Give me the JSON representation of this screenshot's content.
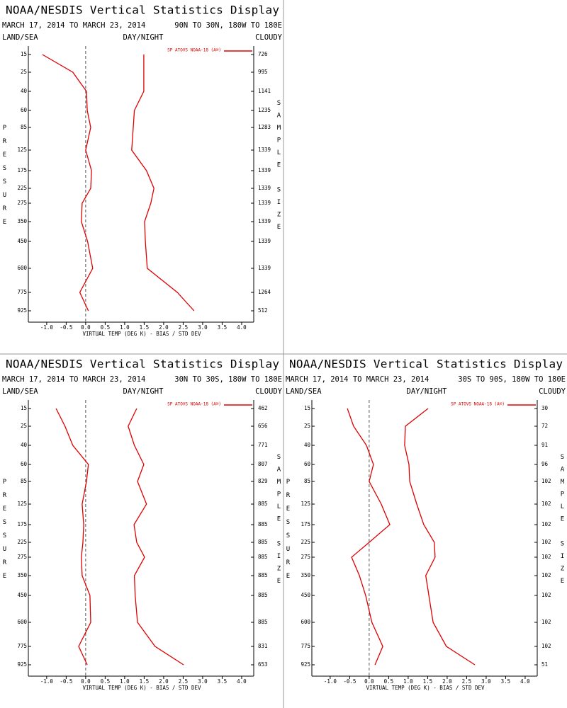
{
  "chart_data": [
    {
      "type": "line",
      "title": "NOAA/NESDIS Vertical Statistics Display",
      "subtitle": "MARCH 17, 2014 TO MARCH 23, 2014",
      "region": "90N TO 30N, 180W TO 180E",
      "land_sea": "LAND/SEA",
      "day_night": "DAY/NIGHT",
      "cloudy": "CLOUDY",
      "y_label": "PRESSURE",
      "y2_label": "SAMPLE SIZE",
      "x_label": "VIRTUAL TEMP (DEG K) - BIAS / STD DEV",
      "categories": [
        15,
        25,
        40,
        60,
        85,
        125,
        175,
        225,
        275,
        350,
        450,
        600,
        775,
        925
      ],
      "series": [
        {
          "name": "SP ATOVS NOAA-18 (A®)",
          "color": "#dd0000",
          "bias": [
            -1.11,
            -0.33,
            0.02,
            0.04,
            0.13,
            0.0,
            0.15,
            0.13,
            -0.09,
            -0.11,
            0.05,
            0.18,
            -0.15,
            0.07
          ],
          "std_dev": [
            1.49,
            1.49,
            1.49,
            1.25,
            1.22,
            1.18,
            1.56,
            1.75,
            1.67,
            1.51,
            1.53,
            1.58,
            2.35,
            2.78
          ]
        }
      ],
      "sample_size": [
        726,
        995,
        1141,
        1235,
        1283,
        1339,
        1339,
        1339,
        1339,
        1339,
        1339,
        1339,
        1264,
        512
      ],
      "xlim": [
        -1.47,
        4.31
      ],
      "xticks": [
        {
          "value": -1,
          "label": "-1.0"
        },
        -0.5,
        {
          "value": 0,
          "label": "0.0"
        },
        0.5,
        {
          "value": 1,
          "label": "1.0"
        },
        1.5,
        {
          "value": 2,
          "label": "2.0"
        },
        2.5,
        {
          "value": 3,
          "label": "3.0"
        },
        3.5,
        {
          "value": 4,
          "label": "4.0"
        }
      ]
    },
    {
      "type": "line",
      "title": "NOAA/NESDIS Vertical Statistics Display",
      "subtitle": "MARCH 17, 2014 TO MARCH 23, 2014",
      "region": "30N TO 30S, 180W TO 180E",
      "land_sea": "LAND/SEA",
      "day_night": "DAY/NIGHT",
      "cloudy": "CLOUDY",
      "y_label": "PRESSURE",
      "y2_label": "SAMPLE SIZE",
      "x_label": "VIRTUAL TEMP (DEG K) - BIAS / STD DEV",
      "categories": [
        15,
        25,
        40,
        60,
        85,
        125,
        175,
        225,
        275,
        350,
        450,
        600,
        775,
        925
      ],
      "series": [
        {
          "name": "SP ATOVS NOAA-18 (A®)",
          "color": "#dd0000",
          "bias": [
            -0.76,
            -0.53,
            -0.33,
            0.07,
            0.02,
            -0.09,
            -0.05,
            -0.07,
            -0.11,
            -0.09,
            0.11,
            0.13,
            -0.18,
            0.04
          ],
          "std_dev": [
            1.31,
            1.09,
            1.25,
            1.49,
            1.33,
            1.56,
            1.24,
            1.31,
            1.51,
            1.25,
            1.27,
            1.33,
            1.78,
            2.51
          ]
        }
      ],
      "sample_size": [
        462,
        656,
        771,
        807,
        829,
        885,
        885,
        885,
        885,
        885,
        885,
        885,
        831,
        653
      ],
      "xlim": [
        -1.47,
        4.31
      ],
      "xticks": [
        {
          "value": -1,
          "label": "-1.0"
        },
        -0.5,
        {
          "value": 0,
          "label": "0.0"
        },
        0.5,
        {
          "value": 1,
          "label": "1.0"
        },
        1.5,
        {
          "value": 2,
          "label": "2.0"
        },
        2.5,
        {
          "value": 3,
          "label": "3.0"
        },
        3.5,
        {
          "value": 4,
          "label": "4.0"
        }
      ]
    },
    {
      "type": "line",
      "title": "NOAA/NESDIS Vertical Statistics Display",
      "subtitle": "MARCH 17, 2014 TO MARCH 23, 2014",
      "region": "30S TO 90S, 180W TO 180E",
      "land_sea": "LAND/SEA",
      "day_night": "DAY/NIGHT",
      "cloudy": "CLOUDY",
      "y_label": "PRESSURE",
      "y2_label": "SAMPLE SIZE",
      "x_label": "VIRTUAL TEMP (DEG K) - BIAS / STD DEV",
      "categories": [
        15,
        25,
        40,
        60,
        85,
        125,
        175,
        225,
        275,
        350,
        450,
        600,
        775,
        925
      ],
      "series": [
        {
          "name": "SP ATOVS NOAA-18 (A®)",
          "color": "#dd0000",
          "bias": [
            -0.56,
            -0.4,
            -0.07,
            0.11,
            0.0,
            0.31,
            0.53,
            0.0,
            -0.45,
            -0.25,
            -0.09,
            0.07,
            0.35,
            0.15
          ],
          "std_dev": [
            1.51,
            0.93,
            0.91,
            1.02,
            1.04,
            1.22,
            1.4,
            1.67,
            1.69,
            1.45,
            1.53,
            1.64,
            1.98,
            2.71
          ]
        }
      ],
      "sample_size": [
        30,
        72,
        91,
        96,
        102,
        102,
        102,
        102,
        102,
        102,
        102,
        102,
        102,
        51
      ],
      "xlim": [
        -1.47,
        4.31
      ],
      "xticks": [
        {
          "value": -1,
          "label": "-1.0"
        },
        -0.5,
        {
          "value": 0,
          "label": "0.0"
        },
        0.5,
        {
          "value": 1,
          "label": "1.0"
        },
        1.5,
        {
          "value": 2,
          "label": "2.0"
        },
        2.5,
        {
          "value": 3,
          "label": "3.0"
        },
        3.5,
        {
          "value": 4,
          "label": "4.0"
        }
      ]
    }
  ]
}
